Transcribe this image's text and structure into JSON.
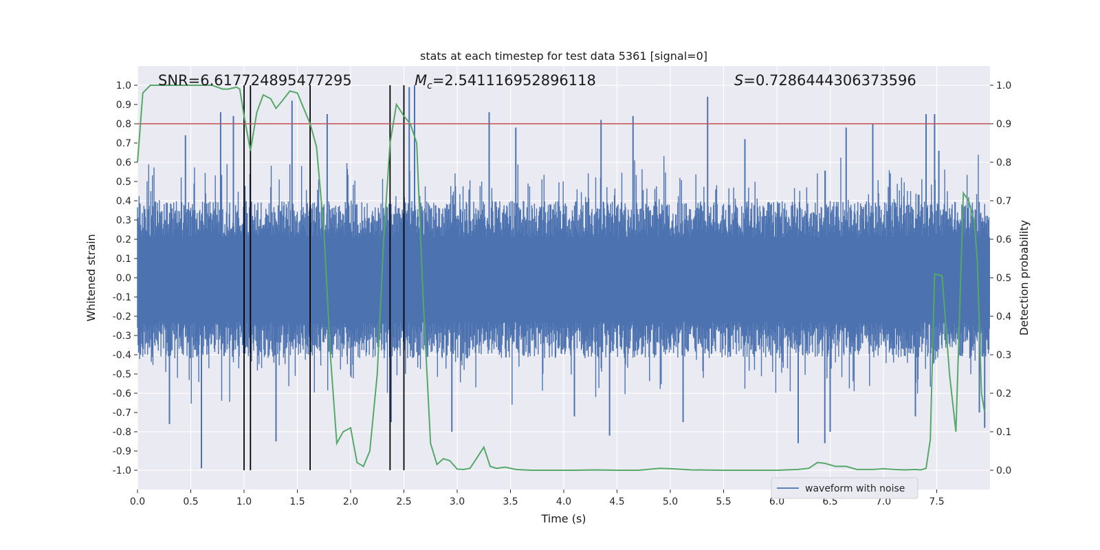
{
  "chart_data": {
    "type": "line",
    "title": "stats at each timestep for test data 5361 [signal=0]",
    "xlabel": "Time (s)",
    "ylabel_left": "Whitened strain",
    "ylabel_right": "Detection probability",
    "xlim": [
      0.0,
      8.0
    ],
    "ylim_left": [
      -1.1,
      1.1
    ],
    "ylim_right": [
      -0.05,
      1.05
    ],
    "x_ticks": [
      "0.0",
      "0.5",
      "1.0",
      "1.5",
      "2.0",
      "2.5",
      "3.0",
      "3.5",
      "4.0",
      "4.5",
      "5.0",
      "5.5",
      "6.0",
      "6.5",
      "7.0",
      "7.5"
    ],
    "y_left_ticks": [
      "1.0",
      "0.9",
      "0.8",
      "0.7",
      "0.6",
      "0.5",
      "0.4",
      "0.3",
      "0.2",
      "0.1",
      "0.0",
      "-0.1",
      "-0.2",
      "-0.3",
      "-0.4",
      "-0.5",
      "-0.6",
      "-0.7",
      "-0.8",
      "-0.9",
      "-1.0"
    ],
    "y_right_ticks": [
      "1.0",
      "0.9",
      "0.8",
      "0.7",
      "0.6",
      "0.5",
      "0.4",
      "0.3",
      "0.2",
      "0.1",
      "0.0"
    ],
    "grid": true,
    "legend": {
      "label": "waveform with noise",
      "placement": "lower-right"
    },
    "annotations": {
      "snr": "SNR=6.617724895477295",
      "mc_symbol": "M",
      "mc_sub": "c",
      "mc_value": "=2.541116952896118",
      "s_symbol": "S",
      "s_value": "=0.7286444306373596"
    },
    "threshold": {
      "y_left": 0.8,
      "color": "#c44e52"
    },
    "vertical_markers_x": [
      1.0,
      1.06,
      1.62,
      2.37,
      2.5
    ],
    "waveform": {
      "name": "waveform with noise",
      "color": "#4c72b0",
      "duration": 8.0,
      "samples": 1600,
      "core_amplitude": 0.38,
      "spikes": [
        {
          "x": 0.6,
          "y": -0.99
        },
        {
          "x": 0.3,
          "y": -0.76
        },
        {
          "x": 0.45,
          "y": 0.74
        },
        {
          "x": 0.78,
          "y": 0.86
        },
        {
          "x": 0.9,
          "y": 0.84
        },
        {
          "x": 1.3,
          "y": -0.85
        },
        {
          "x": 1.45,
          "y": 0.92
        },
        {
          "x": 1.78,
          "y": 0.85
        },
        {
          "x": 2.6,
          "y": 1.0
        },
        {
          "x": 2.55,
          "y": 0.99
        },
        {
          "x": 2.38,
          "y": -0.75
        },
        {
          "x": 2.95,
          "y": -0.8
        },
        {
          "x": 3.3,
          "y": 0.86
        },
        {
          "x": 3.55,
          "y": 0.78
        },
        {
          "x": 4.1,
          "y": -0.72
        },
        {
          "x": 4.35,
          "y": 0.82
        },
        {
          "x": 4.43,
          "y": -0.82
        },
        {
          "x": 4.65,
          "y": 0.84
        },
        {
          "x": 5.12,
          "y": -0.75
        },
        {
          "x": 5.35,
          "y": 0.94
        },
        {
          "x": 5.7,
          "y": 0.72
        },
        {
          "x": 6.2,
          "y": -0.86
        },
        {
          "x": 6.45,
          "y": -0.86
        },
        {
          "x": 6.65,
          "y": 0.78
        },
        {
          "x": 6.9,
          "y": 0.8
        },
        {
          "x": 7.3,
          "y": -0.72
        },
        {
          "x": 7.4,
          "y": 0.85
        },
        {
          "x": 7.48,
          "y": 0.85
        },
        {
          "x": 7.95,
          "y": -0.78
        },
        {
          "x": 6.5,
          "y": -0.8
        },
        {
          "x": 7.52,
          "y": 0.66
        },
        {
          "x": 7.9,
          "y": -0.7
        }
      ]
    },
    "probability": {
      "name": "Detection probability",
      "color": "#55a868",
      "x": [
        0.0,
        0.05,
        0.12,
        0.2,
        0.3,
        0.4,
        0.5,
        0.6,
        0.7,
        0.8,
        0.85,
        0.93,
        0.96,
        1.0,
        1.06,
        1.12,
        1.18,
        1.25,
        1.3,
        1.36,
        1.43,
        1.5,
        1.56,
        1.62,
        1.68,
        1.75,
        1.81,
        1.87,
        1.93,
        2.0,
        2.06,
        2.12,
        2.18,
        2.25,
        2.31,
        2.37,
        2.43,
        2.5,
        2.56,
        2.62,
        2.68,
        2.75,
        2.81,
        2.87,
        2.93,
        3.0,
        3.06,
        3.12,
        3.18,
        3.25,
        3.31,
        3.37,
        3.45,
        3.55,
        3.7,
        3.9,
        4.1,
        4.3,
        4.5,
        4.7,
        4.9,
        5.0,
        5.2,
        5.5,
        5.8,
        6.0,
        6.2,
        6.3,
        6.38,
        6.45,
        6.55,
        6.65,
        6.75,
        6.9,
        7.0,
        7.1,
        7.2,
        7.3,
        7.35,
        7.4,
        7.44,
        7.48,
        7.55,
        7.62,
        7.68,
        7.75,
        7.8,
        7.85,
        7.88,
        7.92,
        7.95
      ],
      "y": [
        0.8,
        0.98,
        1.0,
        1.0,
        1.0,
        1.0,
        1.0,
        1.0,
        1.0,
        0.99,
        0.99,
        0.995,
        0.99,
        0.92,
        0.83,
        0.93,
        0.975,
        0.965,
        0.94,
        0.96,
        0.985,
        0.98,
        0.94,
        0.9,
        0.84,
        0.62,
        0.3,
        0.07,
        0.1,
        0.11,
        0.02,
        0.01,
        0.05,
        0.25,
        0.6,
        0.85,
        0.95,
        0.92,
        0.9,
        0.85,
        0.45,
        0.07,
        0.015,
        0.03,
        0.025,
        0.003,
        0.002,
        0.005,
        0.03,
        0.06,
        0.01,
        0.005,
        0.008,
        0.002,
        0.0,
        0.0,
        0.0,
        0.001,
        0.0,
        0.0,
        0.005,
        0.004,
        0.001,
        0.0,
        0.0,
        0.0,
        0.002,
        0.005,
        0.02,
        0.018,
        0.01,
        0.01,
        0.002,
        0.002,
        0.004,
        0.002,
        0.001,
        0.002,
        0.001,
        0.005,
        0.08,
        0.51,
        0.505,
        0.25,
        0.1,
        0.72,
        0.7,
        0.65,
        0.55,
        0.2,
        0.15
      ]
    }
  }
}
